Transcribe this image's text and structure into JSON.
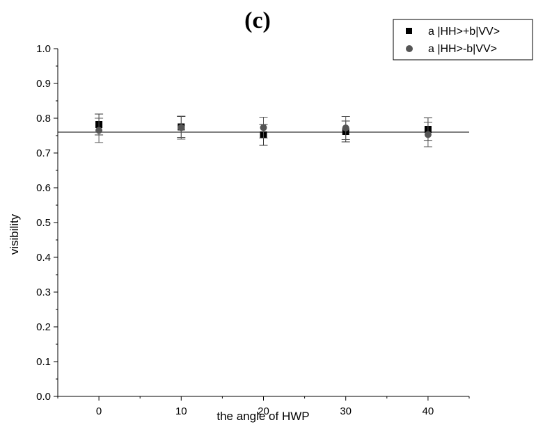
{
  "chart_data": {
    "type": "scatter",
    "title": "(c)",
    "xlabel": "the angle of HWP",
    "ylabel": "visibility",
    "xlim": [
      -5,
      45
    ],
    "ylim": [
      0.0,
      1.0
    ],
    "x_ticks": [
      0,
      10,
      20,
      30,
      40
    ],
    "x_tick_labels": [
      "0",
      "10",
      "20",
      "30",
      "40"
    ],
    "y_ticks": [
      0.0,
      0.1,
      0.2,
      0.3,
      0.4,
      0.5,
      0.6,
      0.7,
      0.8,
      0.9,
      1.0
    ],
    "y_tick_labels": [
      "0.0",
      "0.1",
      "0.2",
      "0.3",
      "0.4",
      "0.5",
      "0.6",
      "0.7",
      "0.8",
      "0.9",
      "1.0"
    ],
    "grid": false,
    "legend_position": "top-right",
    "reference_line": {
      "y": 0.76
    },
    "series": [
      {
        "name": "a |HH>+b|VV>",
        "marker": "square",
        "color": "#000000",
        "x": [
          0,
          10,
          20,
          30,
          40
        ],
        "y": [
          0.782,
          0.775,
          0.752,
          0.762,
          0.768
        ],
        "err": [
          0.03,
          0.03,
          0.03,
          0.03,
          0.033
        ]
      },
      {
        "name": "a |HH>-b|VV>",
        "marker": "circle",
        "color": "#555555",
        "x": [
          0,
          10,
          20,
          30,
          40
        ],
        "y": [
          0.765,
          0.773,
          0.773,
          0.772,
          0.753
        ],
        "err": [
          0.035,
          0.033,
          0.03,
          0.033,
          0.035
        ]
      }
    ]
  }
}
